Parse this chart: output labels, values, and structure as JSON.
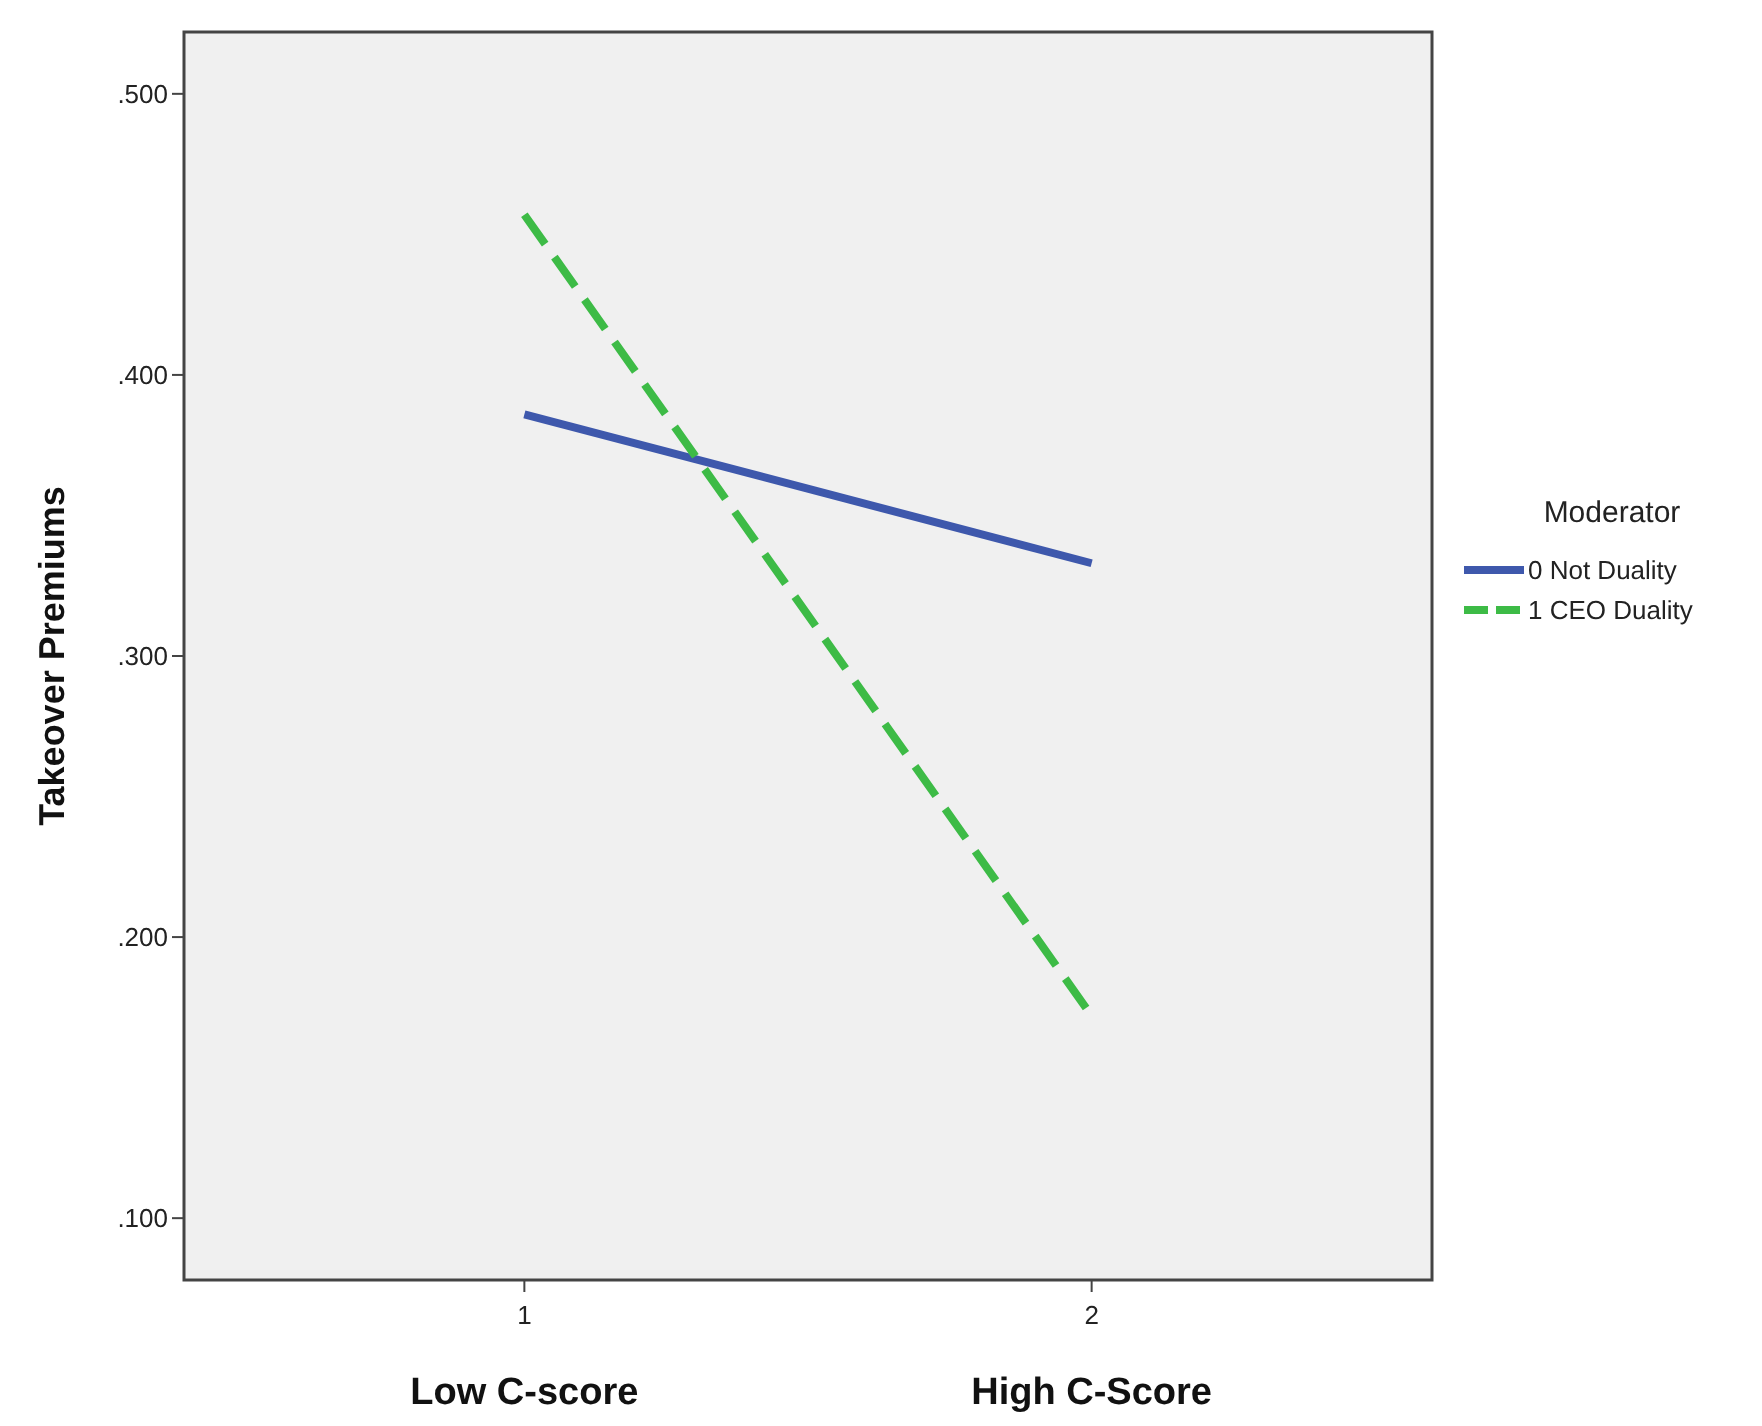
{
  "chart_data": {
    "type": "line",
    "ylabel": "Takeover Premiums",
    "legend_title": "Moderator",
    "x": [
      1,
      2
    ],
    "series": [
      {
        "name": "0 Not Duality",
        "color": "#3e58ac",
        "values": [
          0.386,
          0.333
        ],
        "line_style": "solid"
      },
      {
        "name": "1 CEO Duality",
        "color": "#3dbb46",
        "values": [
          0.457,
          0.172
        ],
        "line_style": "dashed"
      }
    ],
    "xlim": [
      0.4,
      2.6
    ],
    "xticks": [
      1,
      2
    ],
    "ylim": [
      0.078,
      0.522
    ],
    "yticks": [
      {
        "value": 0.1,
        "label": ".100"
      },
      {
        "value": 0.2,
        "label": ".200"
      },
      {
        "value": 0.3,
        "label": ".300"
      },
      {
        "value": 0.4,
        "label": ".400"
      },
      {
        "value": 0.5,
        "label": ".500"
      }
    ],
    "annotations": [
      "Low C-score",
      "High C-Score"
    ],
    "grid": false,
    "legend": "right",
    "marker": "none"
  }
}
